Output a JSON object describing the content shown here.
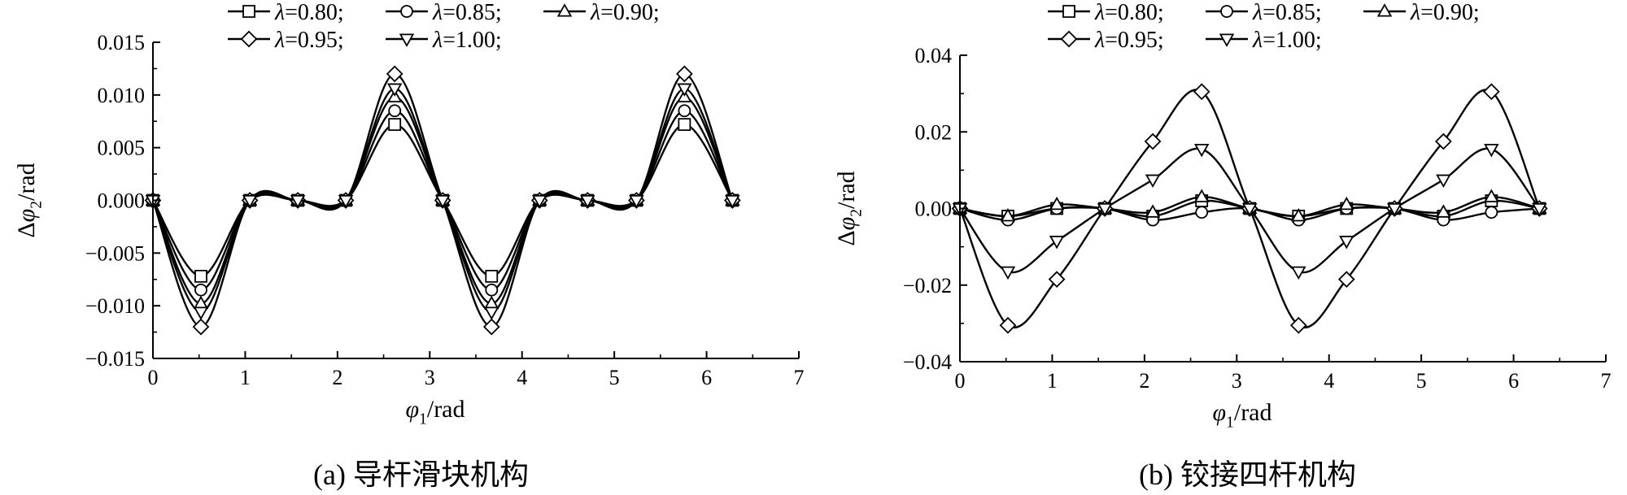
{
  "captions": {
    "a": "(a) 导杆滑块机构",
    "b": "(b) 铰接四杆机构"
  },
  "chart_data": [
    {
      "type": "line",
      "panel": "a",
      "xlabel": "φ1/rad",
      "ylabel": "Δφ2/rad",
      "xlim": [
        0,
        7
      ],
      "ylim": [
        -0.015,
        0.015
      ],
      "xticks": [
        "0",
        "1",
        "2",
        "3",
        "4",
        "5",
        "6",
        "7"
      ],
      "yticks": [
        "−0.015",
        "−0.010",
        "−0.005",
        "0.000",
        "0.005",
        "0.010",
        "0.015"
      ],
      "grid": false,
      "legend": "top",
      "x": [
        0,
        0.52,
        1.05,
        1.57,
        2.09,
        2.62,
        3.14,
        3.67,
        4.19,
        4.71,
        5.24,
        5.76,
        6.28
      ],
      "series": [
        {
          "name": "λ=0.80;",
          "marker": "square",
          "values": [
            0,
            -0.0072,
            0,
            0,
            0,
            0.0072,
            0,
            -0.0072,
            0,
            0,
            0,
            0.0072,
            0
          ]
        },
        {
          "name": "λ=0.85;",
          "marker": "circle",
          "values": [
            0,
            -0.0085,
            0,
            0,
            0,
            0.0085,
            0,
            -0.0085,
            0,
            0,
            0,
            0.0085,
            0
          ]
        },
        {
          "name": "λ=0.90;",
          "marker": "triangle-up",
          "values": [
            0,
            -0.0098,
            0,
            0,
            0,
            0.0098,
            0,
            -0.0098,
            0,
            0,
            0,
            0.0098,
            0
          ]
        },
        {
          "name": "λ=0.95;",
          "marker": "diamond",
          "values": [
            0,
            -0.012,
            0,
            0,
            0,
            0.012,
            0,
            -0.012,
            0,
            0,
            0,
            0.012,
            0
          ]
        },
        {
          "name": "λ=1.00;",
          "marker": "triangle-down",
          "values": [
            0,
            -0.0106,
            0,
            0,
            0,
            0.0106,
            0,
            -0.0106,
            0,
            0,
            0,
            0.0106,
            0
          ]
        }
      ]
    },
    {
      "type": "line",
      "panel": "b",
      "xlabel": "φ1/rad",
      "ylabel": "Δφ2/rad",
      "xlim": [
        0,
        7
      ],
      "ylim": [
        -0.04,
        0.04
      ],
      "xticks": [
        "0",
        "1",
        "2",
        "3",
        "4",
        "5",
        "6",
        "7"
      ],
      "yticks": [
        "−0.04",
        "−0.02",
        "0.00",
        "0.02",
        "0.04"
      ],
      "grid": false,
      "legend": "top",
      "x": [
        0,
        0.52,
        1.05,
        1.57,
        2.09,
        2.62,
        3.14,
        3.67,
        4.19,
        4.71,
        5.24,
        5.76,
        6.28
      ],
      "series": [
        {
          "name": "λ=0.80;",
          "marker": "square",
          "values": [
            0,
            -0.002,
            0,
            0,
            -0.002,
            0.002,
            0,
            -0.002,
            0,
            0,
            -0.002,
            0.002,
            0
          ]
        },
        {
          "name": "λ=0.85;",
          "marker": "circle",
          "values": [
            0,
            -0.003,
            0,
            0,
            -0.003,
            -0.001,
            0,
            -0.003,
            0,
            0,
            -0.003,
            -0.001,
            0
          ]
        },
        {
          "name": "λ=0.90;",
          "marker": "triangle-up",
          "values": [
            0,
            -0.002,
            0.001,
            0,
            -0.001,
            0.003,
            0,
            -0.002,
            0.001,
            0,
            -0.001,
            0.003,
            0
          ]
        },
        {
          "name": "λ=0.95;",
          "marker": "diamond",
          "values": [
            0,
            -0.0305,
            -0.0185,
            0,
            0.0175,
            0.0305,
            0,
            -0.0305,
            -0.0185,
            0,
            0.0175,
            0.0305,
            0
          ]
        },
        {
          "name": "λ=1.00;",
          "marker": "triangle-down",
          "values": [
            0,
            -0.0165,
            -0.0085,
            0,
            0.0075,
            0.0155,
            0,
            -0.0165,
            -0.0085,
            0,
            0.0075,
            0.0155,
            0
          ]
        }
      ]
    }
  ]
}
